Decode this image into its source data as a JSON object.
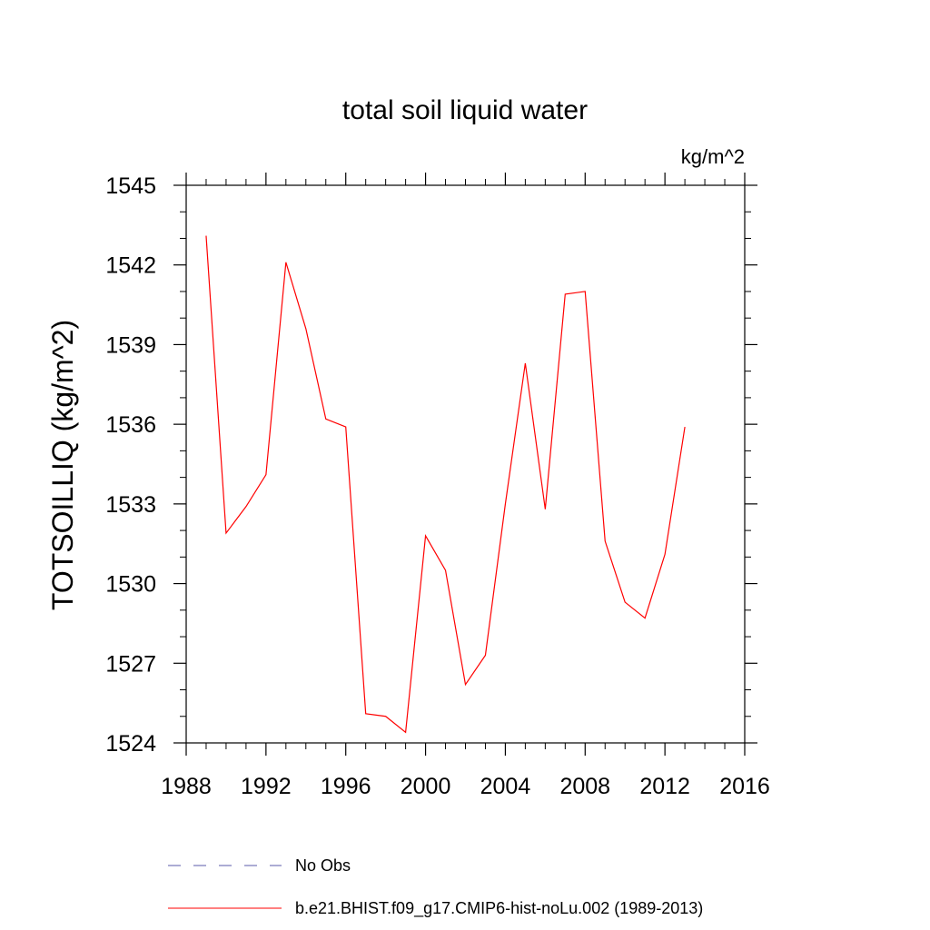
{
  "chart_data": {
    "type": "line",
    "title": "total soil liquid water",
    "units": "kg/m^2",
    "ylabel": "TOTSOILLIQ  (kg/m^2)",
    "xlabel": "",
    "xlim": [
      1988,
      2016
    ],
    "ylim": [
      1524,
      1545
    ],
    "x_ticks": [
      1988,
      1992,
      1996,
      2000,
      2004,
      2008,
      2012,
      2016
    ],
    "y_ticks": [
      1524,
      1527,
      1530,
      1533,
      1536,
      1539,
      1542,
      1545
    ],
    "x_minor_step": 1,
    "y_minor_step": 1,
    "grid": false,
    "legend_position": "bottom",
    "series": [
      {
        "name": "b.e21.BHIST.f09_g17.CMIP6-hist-noLu.002 (1989-2013)",
        "color": "#ff0000",
        "dash": "solid",
        "x": [
          1989,
          1990,
          1991,
          1992,
          1993,
          1994,
          1995,
          1996,
          1997,
          1998,
          1999,
          2000,
          2001,
          2002,
          2003,
          2004,
          2005,
          2006,
          2007,
          2008,
          2009,
          2010,
          2011,
          2012,
          2013
        ],
        "y": [
          1543.1,
          1531.9,
          1532.9,
          1534.1,
          1542.1,
          1539.6,
          1536.2,
          1535.9,
          1525.1,
          1525.0,
          1524.4,
          1531.8,
          1530.5,
          1526.2,
          1527.3,
          1533.0,
          1538.3,
          1532.8,
          1540.9,
          1541.0,
          1531.6,
          1529.3,
          1528.7,
          1531.1,
          1535.9
        ]
      }
    ],
    "legend": [
      {
        "label": "No Obs",
        "color": "#5a5aa8",
        "dash": "dashed"
      },
      {
        "label": "b.e21.BHIST.f09_g17.CMIP6-hist-noLu.002 (1989-2013)",
        "color": "#ff0000",
        "dash": "solid"
      }
    ]
  }
}
